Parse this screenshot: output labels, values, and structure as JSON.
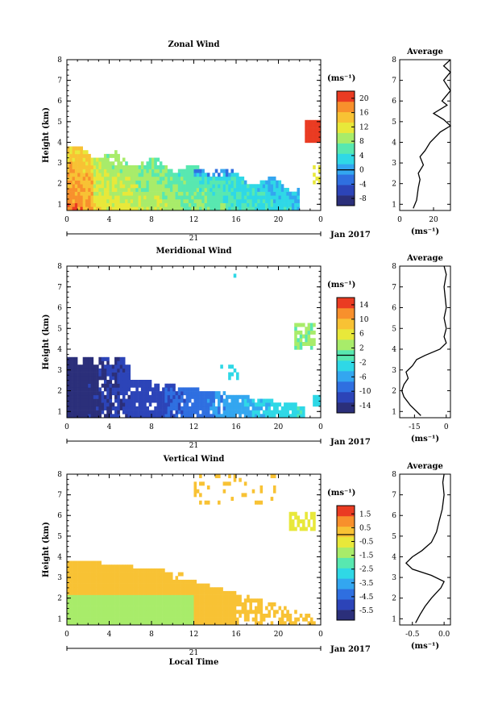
{
  "chart_data": [
    {
      "type": "heatmap",
      "title": "Zonal Wind",
      "ylabel": "Height (km)",
      "xticks": [
        "0",
        "4",
        "8",
        "12",
        "16",
        "20",
        "0"
      ],
      "yticks": [
        "1",
        "2",
        "3",
        "4",
        "5",
        "6",
        "7",
        "8"
      ],
      "xlim": [
        0,
        24
      ],
      "ylim": [
        0.7,
        8
      ],
      "date_tick": "21",
      "date_label": "Jan 2017",
      "colorbar": {
        "unit": "(ms⁻¹)",
        "ticks": [
          "20",
          "16",
          "12",
          "8",
          "4",
          "0",
          "-4",
          "-8"
        ],
        "range": [
          -10,
          22
        ],
        "colors": [
          "#2b2f7a",
          "#2c44b8",
          "#2f6fe0",
          "#33a6f0",
          "#2fd8e6",
          "#58e8b0",
          "#a8ec6a",
          "#e8e83a",
          "#f8c234",
          "#f8902c",
          "#ea3b22"
        ]
      },
      "avg": {
        "title": "Average",
        "xlabel": "(ms⁻¹)",
        "xticks": [
          "0",
          "20"
        ],
        "xlim": [
          0,
          30
        ],
        "profile": [
          [
            0.8,
            8
          ],
          [
            1.2,
            10
          ],
          [
            1.8,
            11
          ],
          [
            2.2,
            12
          ],
          [
            2.5,
            11
          ],
          [
            2.9,
            14
          ],
          [
            3.3,
            12
          ],
          [
            3.6,
            15
          ],
          [
            4.0,
            18
          ],
          [
            4.5,
            24
          ],
          [
            4.8,
            30
          ],
          [
            5.1,
            26
          ],
          [
            5.4,
            20
          ],
          [
            5.8,
            28
          ],
          [
            6.0,
            25
          ],
          [
            6.5,
            30
          ],
          [
            7.0,
            26
          ],
          [
            7.4,
            30
          ],
          [
            7.7,
            26
          ],
          [
            8.0,
            30
          ]
        ]
      }
    },
    {
      "type": "heatmap",
      "title": "Meridional Wind",
      "ylabel": "Height (km)",
      "xticks": [
        "0",
        "4",
        "8",
        "12",
        "16",
        "20",
        "0"
      ],
      "yticks": [
        "1",
        "2",
        "3",
        "4",
        "5",
        "6",
        "7",
        "8"
      ],
      "xlim": [
        0,
        24
      ],
      "ylim": [
        0.7,
        8
      ],
      "date_tick": "21",
      "date_label": "Jan 2017",
      "colorbar": {
        "unit": "(ms⁻¹)",
        "ticks": [
          "14",
          "10",
          "6",
          "2",
          "-2",
          "-6",
          "-10",
          "-14"
        ],
        "range": [
          -16,
          16
        ],
        "colors": [
          "#2b2f7a",
          "#2c44b8",
          "#2f6fe0",
          "#33a6f0",
          "#2fd8e6",
          "#58e8b0",
          "#a8ec6a",
          "#e8e83a",
          "#f8c234",
          "#f8902c",
          "#ea3b22"
        ]
      },
      "avg": {
        "title": "Average",
        "xlabel": "(ms⁻¹)",
        "xticks": [
          "-15",
          "0"
        ],
        "xlim": [
          -22,
          2
        ],
        "profile": [
          [
            0.8,
            -12
          ],
          [
            1.3,
            -17
          ],
          [
            1.7,
            -20
          ],
          [
            2.0,
            -21
          ],
          [
            2.3,
            -20
          ],
          [
            2.6,
            -18
          ],
          [
            2.9,
            -19
          ],
          [
            3.2,
            -16
          ],
          [
            3.5,
            -14
          ],
          [
            3.7,
            -10
          ],
          [
            4.0,
            -3
          ],
          [
            4.3,
            0
          ],
          [
            4.6,
            -1
          ],
          [
            5.0,
            0
          ],
          [
            5.5,
            -1
          ],
          [
            6.0,
            0
          ],
          [
            7.0,
            -1
          ],
          [
            7.6,
            0
          ],
          [
            8.0,
            -1
          ]
        ]
      }
    },
    {
      "type": "heatmap",
      "title": "Vertical Wind",
      "ylabel": "Height (km)",
      "xlabel": "Local Time",
      "xticks": [
        "0",
        "4",
        "8",
        "12",
        "16",
        "20",
        "0"
      ],
      "yticks": [
        "1",
        "2",
        "3",
        "4",
        "5",
        "6",
        "7",
        "8"
      ],
      "xlim": [
        0,
        24
      ],
      "ylim": [
        0.7,
        8
      ],
      "date_tick": "21",
      "date_label": "Jan 2017",
      "colorbar": {
        "unit": "(ms⁻¹)",
        "ticks": [
          "1.5",
          "0.5",
          "-0.5",
          "-1.5",
          "-2.5",
          "-3.5",
          "-4.5",
          "-5.5"
        ],
        "range": [
          -6.2,
          2.1
        ],
        "colors": [
          "#2b2f7a",
          "#2c44b8",
          "#2f6fe0",
          "#33a6f0",
          "#2fd8e6",
          "#58e8b0",
          "#a8ec6a",
          "#e8e83a",
          "#f8c234",
          "#f8902c",
          "#ea3b22"
        ]
      },
      "avg": {
        "title": "Average",
        "xlabel": "(ms⁻¹)",
        "xticks": [
          "-0.5",
          "0.0"
        ],
        "xlim": [
          -0.7,
          0.1
        ],
        "profile": [
          [
            0.8,
            -0.45
          ],
          [
            1.2,
            -0.38
          ],
          [
            1.6,
            -0.3
          ],
          [
            2.0,
            -0.2
          ],
          [
            2.5,
            -0.05
          ],
          [
            2.8,
            0.0
          ],
          [
            3.1,
            -0.2
          ],
          [
            3.4,
            -0.5
          ],
          [
            3.7,
            -0.6
          ],
          [
            4.0,
            -0.5
          ],
          [
            4.3,
            -0.35
          ],
          [
            4.7,
            -0.2
          ],
          [
            5.2,
            -0.12
          ],
          [
            5.7,
            -0.08
          ],
          [
            6.3,
            -0.03
          ],
          [
            7.0,
            0.0
          ],
          [
            7.6,
            -0.02
          ],
          [
            8.0,
            0.0
          ]
        ]
      }
    }
  ]
}
